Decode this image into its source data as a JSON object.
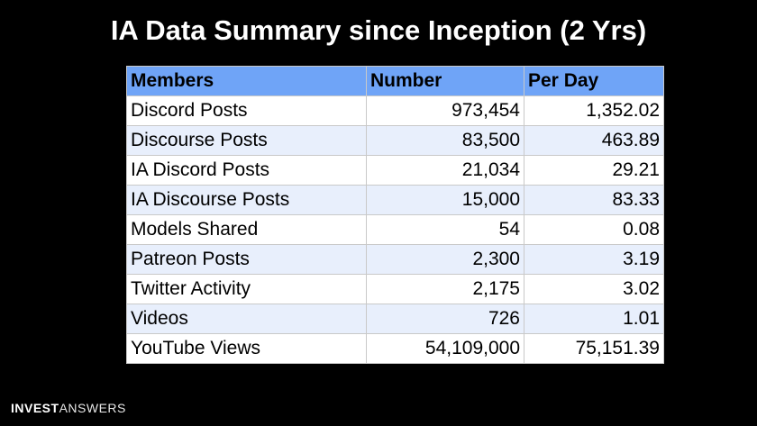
{
  "title": "IA Data Summary since Inception (2 Yrs)",
  "table": {
    "headers": [
      "Members",
      "Number",
      "Per Day"
    ],
    "rows": [
      [
        "Discord Posts",
        "973,454",
        "1,352.02"
      ],
      [
        "Discourse Posts",
        "83,500",
        "463.89"
      ],
      [
        "IA Discord Posts",
        "21,034",
        "29.21"
      ],
      [
        "IA Discourse Posts",
        "15,000",
        "83.33"
      ],
      [
        "Models Shared",
        "54",
        "0.08"
      ],
      [
        "Patreon Posts",
        "2,300",
        "3.19"
      ],
      [
        "Twitter Activity",
        "2,175",
        "3.02"
      ],
      [
        "Videos",
        "726",
        "1.01"
      ],
      [
        "YouTube Views",
        "54,109,000",
        "75,151.39"
      ]
    ]
  },
  "brand": {
    "part1": "INVEST",
    "part2": "ANSWERS"
  },
  "colors": {
    "background": "#000000",
    "header_fill": "#6fa4f7",
    "row_alt_fill": "#e8effc",
    "row_fill": "#ffffff"
  }
}
